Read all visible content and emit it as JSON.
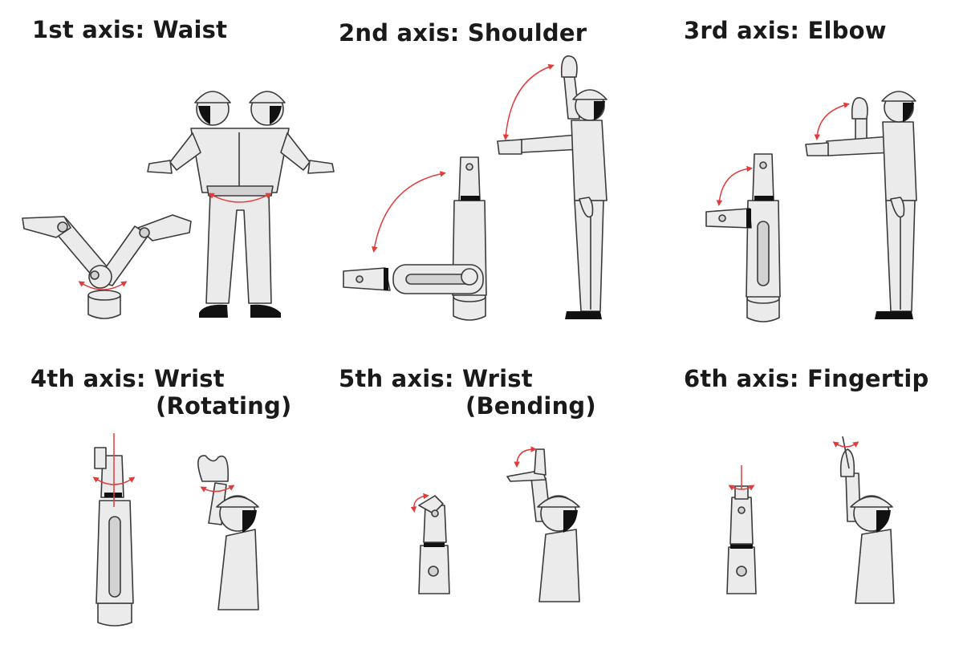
{
  "panels": [
    {
      "caption": "1st axis: Waist"
    },
    {
      "caption": "2nd axis: Shoulder"
    },
    {
      "caption": "3rd axis: Elbow"
    },
    {
      "caption": "4th axis: Wrist",
      "caption_line2": "(Rotating)"
    },
    {
      "caption": "5th axis: Wrist",
      "caption_line2": "(Bending)"
    },
    {
      "caption": "6th axis: Fingertip"
    }
  ],
  "colors": {
    "stroke": "#3a3a3a",
    "fill": "#ebebeb",
    "fill_dark": "#d2d2d2",
    "arrow": "#e23b3b",
    "hair": "#111111"
  },
  "icons": [
    "robot-arm-icon",
    "worker-figure-icon",
    "rotation-arrow-icon"
  ]
}
